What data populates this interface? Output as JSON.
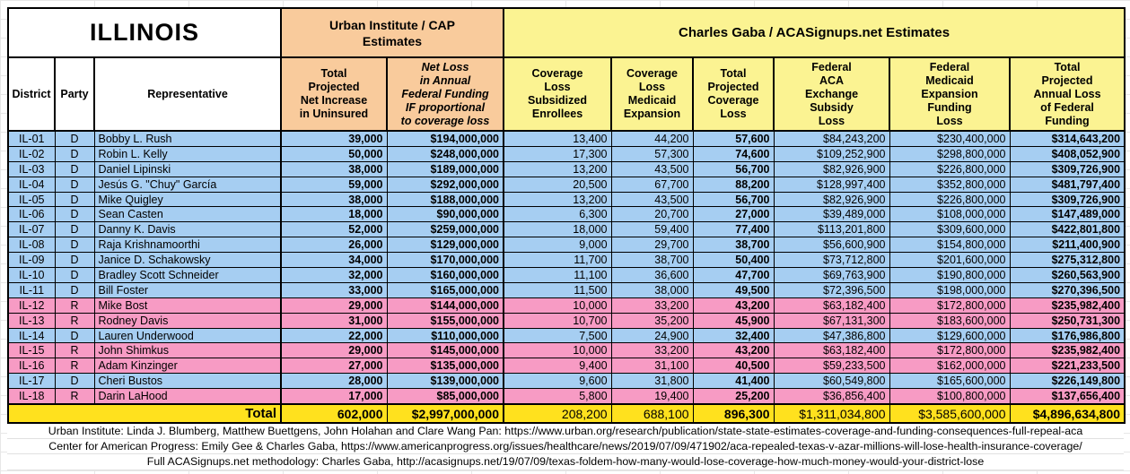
{
  "title": "ILLINOIS",
  "groups": {
    "urban": "Urban Institute / CAP\nEstimates",
    "gaba": "Charles Gaba / ACASignups.net Estimates"
  },
  "columns": [
    "District",
    "Party",
    "Representative",
    "Total\nProjected\nNet Increase\nin Uninsured",
    "Net Loss\nin Annual\nFederal Funding\nIF proportional\nto coverage loss",
    "Coverage\nLoss\nSubsidized\nEnrollees",
    "Coverage\nLoss\nMedicaid\nExpansion",
    "Total\nProjected\nCoverage\nLoss",
    "Federal\nACA\nExchange\nSubsidy\nLoss",
    "Federal\nMedicaid\nExpansion\nFunding\nLoss",
    "Total\nProjected\nAnnual Loss\nof Federal\nFunding"
  ],
  "rows": [
    {
      "district": "IL-01",
      "party": "D",
      "representative": "Bobby L. Rush",
      "values": [
        "39,000",
        "$194,000,000",
        "13,400",
        "44,200",
        "57,600",
        "$84,243,200",
        "$230,400,000",
        "$314,643,200"
      ]
    },
    {
      "district": "IL-02",
      "party": "D",
      "representative": "Robin L. Kelly",
      "values": [
        "50,000",
        "$248,000,000",
        "17,300",
        "57,300",
        "74,600",
        "$109,252,900",
        "$298,800,000",
        "$408,052,900"
      ]
    },
    {
      "district": "IL-03",
      "party": "D",
      "representative": "Daniel Lipinski",
      "values": [
        "38,000",
        "$189,000,000",
        "13,200",
        "43,500",
        "56,700",
        "$82,926,900",
        "$226,800,000",
        "$309,726,900"
      ]
    },
    {
      "district": "IL-04",
      "party": "D",
      "representative": "Jesús G. \"Chuy\" García",
      "values": [
        "59,000",
        "$292,000,000",
        "20,500",
        "67,700",
        "88,200",
        "$128,997,400",
        "$352,800,000",
        "$481,797,400"
      ]
    },
    {
      "district": "IL-05",
      "party": "D",
      "representative": "Mike Quigley",
      "values": [
        "38,000",
        "$188,000,000",
        "13,200",
        "43,500",
        "56,700",
        "$82,926,900",
        "$226,800,000",
        "$309,726,900"
      ]
    },
    {
      "district": "IL-06",
      "party": "D",
      "representative": "Sean Casten",
      "values": [
        "18,000",
        "$90,000,000",
        "6,300",
        "20,700",
        "27,000",
        "$39,489,000",
        "$108,000,000",
        "$147,489,000"
      ]
    },
    {
      "district": "IL-07",
      "party": "D",
      "representative": "Danny K. Davis",
      "values": [
        "52,000",
        "$259,000,000",
        "18,000",
        "59,400",
        "77,400",
        "$113,201,800",
        "$309,600,000",
        "$422,801,800"
      ]
    },
    {
      "district": "IL-08",
      "party": "D",
      "representative": "Raja Krishnamoorthi",
      "values": [
        "26,000",
        "$129,000,000",
        "9,000",
        "29,700",
        "38,700",
        "$56,600,900",
        "$154,800,000",
        "$211,400,900"
      ]
    },
    {
      "district": "IL-09",
      "party": "D",
      "representative": "Janice D. Schakowsky",
      "values": [
        "34,000",
        "$170,000,000",
        "11,700",
        "38,700",
        "50,400",
        "$73,712,800",
        "$201,600,000",
        "$275,312,800"
      ]
    },
    {
      "district": "IL-10",
      "party": "D",
      "representative": "Bradley Scott Schneider",
      "values": [
        "32,000",
        "$160,000,000",
        "11,100",
        "36,600",
        "47,700",
        "$69,763,900",
        "$190,800,000",
        "$260,563,900"
      ]
    },
    {
      "district": "IL-11",
      "party": "D",
      "representative": "Bill Foster",
      "values": [
        "33,000",
        "$165,000,000",
        "11,500",
        "38,000",
        "49,500",
        "$72,396,500",
        "$198,000,000",
        "$270,396,500"
      ]
    },
    {
      "district": "IL-12",
      "party": "R",
      "representative": "Mike Bost",
      "values": [
        "29,000",
        "$144,000,000",
        "10,000",
        "33,200",
        "43,200",
        "$63,182,400",
        "$172,800,000",
        "$235,982,400"
      ]
    },
    {
      "district": "IL-13",
      "party": "R",
      "representative": "Rodney Davis",
      "values": [
        "31,000",
        "$155,000,000",
        "10,700",
        "35,200",
        "45,900",
        "$67,131,300",
        "$183,600,000",
        "$250,731,300"
      ]
    },
    {
      "district": "IL-14",
      "party": "D",
      "representative": "Lauren Underwood",
      "values": [
        "22,000",
        "$110,000,000",
        "7,500",
        "24,900",
        "32,400",
        "$47,386,800",
        "$129,600,000",
        "$176,986,800"
      ]
    },
    {
      "district": "IL-15",
      "party": "R",
      "representative": "John Shimkus",
      "values": [
        "29,000",
        "$145,000,000",
        "10,000",
        "33,200",
        "43,200",
        "$63,182,400",
        "$172,800,000",
        "$235,982,400"
      ]
    },
    {
      "district": "IL-16",
      "party": "R",
      "representative": "Adam Kinzinger",
      "values": [
        "27,000",
        "$135,000,000",
        "9,400",
        "31,100",
        "40,500",
        "$59,233,500",
        "$162,000,000",
        "$221,233,500"
      ]
    },
    {
      "district": "IL-17",
      "party": "D",
      "representative": "Cheri Bustos",
      "values": [
        "28,000",
        "$139,000,000",
        "9,600",
        "31,800",
        "41,400",
        "$60,549,800",
        "$165,600,000",
        "$226,149,800"
      ]
    },
    {
      "district": "IL-18",
      "party": "R",
      "representative": "Darin LaHood",
      "values": [
        "17,000",
        "$85,000,000",
        "5,800",
        "19,400",
        "25,200",
        "$36,856,400",
        "$100,800,000",
        "$137,656,400"
      ]
    }
  ],
  "total": {
    "label": "Total",
    "values": [
      "602,000",
      "$2,997,000,000",
      "208,200",
      "688,100",
      "896,300",
      "$1,311,034,800",
      "$3,585,600,000",
      "$4,896,634,800"
    ]
  },
  "footnotes": [
    "Urban Institute: Linda J. Blumberg, Matthew Buettgens, John Holahan and Clare Wang Pan: https://www.urban.org/research/publication/state-state-estimates-coverage-and-funding-consequences-full-repeal-aca",
    "Center for American Progress: Emily Gee & Charles Gaba, https://www.americanprogress.org/issues/healthcare/news/2019/07/09/471902/aca-repealed-texas-v-azar-millions-will-lose-health-insurance-coverage/",
    "Full ACASignups.net methodology: Charles Gaba, http://acasignups.net/19/07/09/texas-foldem-how-many-would-lose-coverage-how-much-money-would-your-district-lose"
  ],
  "colors": {
    "dem": "#A6CEF2",
    "gop": "#F79BC4",
    "orange": "#F9CB9C",
    "yellow": "#FBF392",
    "total": "#FFE11E"
  }
}
